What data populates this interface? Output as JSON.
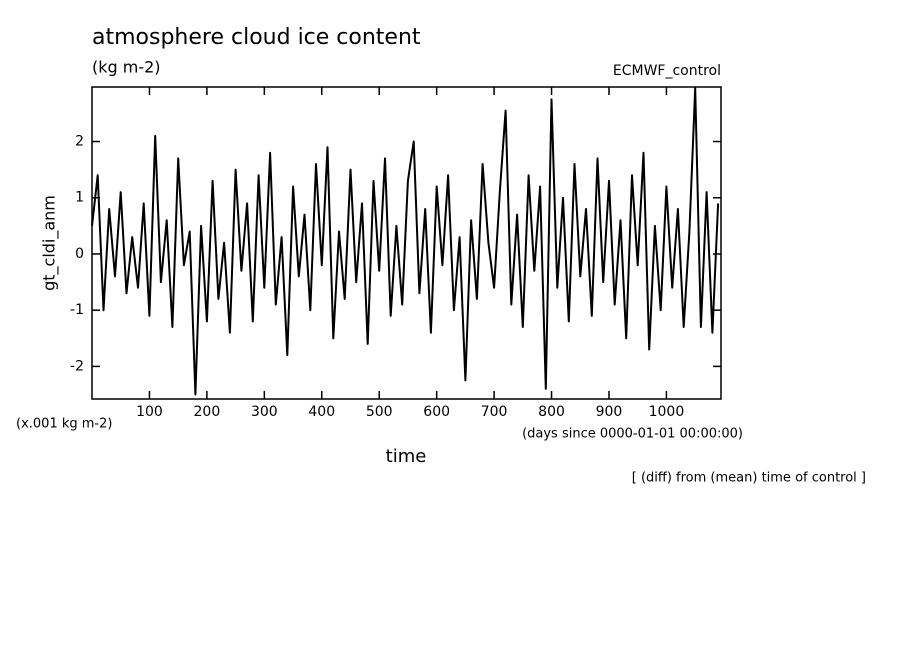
{
  "chart_data": {
    "type": "line",
    "title": "atmosphere cloud ice content",
    "subtitle": "(kg m-2)",
    "annotation_right": "ECMWF_control",
    "ylabel": "gt_cldi_anm",
    "y_unit_note": "(x.001 kg m-2)",
    "x_unit_note": "(days since 0000-01-01 00:00:00)",
    "xlabel": "time",
    "footnote": "[ (diff) from (mean) time of control ]",
    "x": [
      0,
      10,
      20,
      30,
      40,
      50,
      60,
      70,
      80,
      90,
      100,
      110,
      120,
      130,
      140,
      150,
      160,
      170,
      180,
      190,
      200,
      210,
      220,
      230,
      240,
      250,
      260,
      270,
      280,
      290,
      300,
      310,
      320,
      330,
      340,
      350,
      360,
      370,
      380,
      390,
      400,
      410,
      420,
      430,
      440,
      450,
      460,
      470,
      480,
      490,
      500,
      510,
      520,
      530,
      540,
      550,
      560,
      570,
      580,
      590,
      600,
      610,
      620,
      630,
      640,
      650,
      660,
      670,
      680,
      690,
      700,
      710,
      720,
      730,
      740,
      750,
      760,
      770,
      780,
      790,
      800,
      810,
      820,
      830,
      840,
      850,
      860,
      870,
      880,
      890,
      900,
      910,
      920,
      930,
      940,
      950,
      960,
      970,
      980,
      990,
      1000,
      1010,
      1020,
      1030,
      1040,
      1050,
      1060,
      1070,
      1080,
      1090
    ],
    "series": [
      {
        "name": "gt_cldi_anm",
        "color": "#000000",
        "values": [
          0.5,
          1.4,
          -1.0,
          0.8,
          -0.4,
          1.1,
          -0.7,
          0.3,
          -0.6,
          0.9,
          -1.1,
          2.1,
          -0.5,
          0.6,
          -1.3,
          1.7,
          -0.2,
          0.4,
          -2.5,
          0.5,
          -1.2,
          1.3,
          -0.8,
          0.2,
          -1.4,
          1.5,
          -0.3,
          0.9,
          -1.2,
          1.4,
          -0.6,
          1.8,
          -0.9,
          0.3,
          -1.8,
          1.2,
          -0.4,
          0.7,
          -1.0,
          1.6,
          -0.2,
          1.9,
          -1.5,
          0.4,
          -0.8,
          1.5,
          -0.5,
          0.9,
          -1.6,
          1.3,
          -0.3,
          1.7,
          -1.1,
          0.5,
          -0.9,
          1.3,
          2.0,
          -0.7,
          0.8,
          -1.4,
          1.2,
          -0.2,
          1.4,
          -1.0,
          0.3,
          -2.25,
          0.6,
          -0.8,
          1.6,
          0.2,
          -0.6,
          1.1,
          2.55,
          -0.9,
          0.7,
          -1.3,
          1.4,
          -0.3,
          1.2,
          -2.4,
          2.75,
          -0.6,
          1.0,
          -1.2,
          1.6,
          -0.4,
          0.8,
          -1.1,
          1.7,
          -0.5,
          1.3,
          -0.9,
          0.6,
          -1.5,
          1.4,
          -0.2,
          1.8,
          -1.7,
          0.5,
          -1.0,
          1.2,
          -0.6,
          0.8,
          -1.3,
          0.4,
          2.95,
          -1.3,
          1.1,
          -1.4,
          0.9
        ]
      }
    ],
    "xlim": [
      0,
      1095
    ],
    "ylim": [
      -2.58,
      2.97
    ],
    "xticks": [
      100,
      200,
      300,
      400,
      500,
      600,
      700,
      800,
      900,
      1000
    ],
    "yticks": [
      -2,
      -1,
      0,
      1,
      2
    ]
  }
}
